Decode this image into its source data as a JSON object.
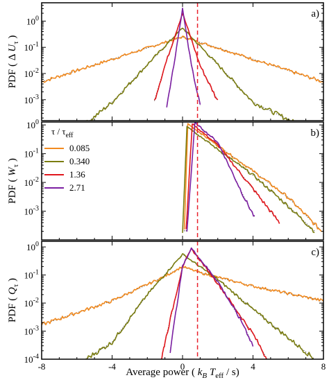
{
  "figure": {
    "xlabel": "Average power  ( k_B T_eff / s)",
    "x_ticks": [
      "-8",
      "-4",
      "0",
      "4",
      "8"
    ],
    "x_tick_values": [
      -8,
      -4,
      0,
      4,
      8
    ],
    "xlim": [
      -8,
      8
    ],
    "dashed_line_x": 0.85,
    "dashed_line_color": "#e8212c",
    "legend_title": "τ / τ_eff",
    "colors": {
      "0.085": "#f28a1f",
      "0.340": "#7a7d10",
      "1.36": "#e0161c",
      "2.71": "#7b1fa2",
      "theory_dotted": "#555555"
    }
  },
  "chart_data": [
    {
      "type": "line",
      "panel": "a)",
      "ylabel": "PDF ( Δ U_τ )",
      "ylim_log10": [
        -3.8,
        0.7
      ],
      "y_ticks": [
        "10^0",
        "10^-1",
        "10^-2",
        "10^-3"
      ],
      "y_tick_exponents": [
        0,
        -1,
        -2,
        -3
      ],
      "series": [
        {
          "name": "0.085",
          "x": [
            -8,
            -4,
            -2,
            0,
            2,
            4,
            8
          ],
          "y": [
            0.0048,
            0.035,
            0.095,
            0.25,
            0.095,
            0.035,
            0.0048
          ]
        },
        {
          "name": "0.340",
          "x": [
            -5.5,
            -4,
            -2,
            0,
            2,
            4,
            6.5
          ],
          "y": [
            0.00012,
            0.0008,
            0.022,
            0.55,
            0.022,
            0.0008,
            0.00012
          ]
        },
        {
          "name": "1.36",
          "x": [
            -1.6,
            -1,
            0,
            1,
            2.0
          ],
          "y": [
            0.0009,
            0.02,
            2.0,
            0.02,
            0.0009
          ]
        },
        {
          "name": "2.71",
          "x": [
            -0.9,
            -0.5,
            0,
            0.5,
            1.0
          ],
          "y": [
            0.0006,
            0.02,
            3.0,
            0.02,
            0.0006
          ]
        }
      ]
    },
    {
      "type": "line",
      "panel": "b)",
      "ylabel": "PDF ( W_τ )",
      "ylim_log10": [
        -4,
        0.1
      ],
      "y_ticks": [
        "10^0",
        "10^-1",
        "10^-2",
        "10^-3"
      ],
      "y_tick_exponents": [
        0,
        -1,
        -2,
        -3
      ],
      "series": [
        {
          "name": "0.085",
          "x": [
            0.1,
            0.3,
            2,
            4,
            6,
            7.9
          ],
          "y": [
            0.0002,
            1.1,
            0.19,
            0.025,
            0.003,
            0.0002
          ]
        },
        {
          "name": "0.340",
          "x": [
            0.0,
            0.25,
            2,
            4,
            6,
            7.5
          ],
          "y": [
            0.0002,
            0.9,
            0.14,
            0.018,
            0.0015,
            0.0002
          ]
        },
        {
          "name": "1.36",
          "x": [
            0.2,
            0.55,
            2,
            4,
            5.5
          ],
          "y": [
            0.0002,
            1.1,
            0.2,
            0.006,
            0.0004
          ]
        },
        {
          "name": "2.71",
          "x": [
            0.25,
            0.7,
            2,
            3.5,
            4.1
          ],
          "y": [
            0.0002,
            1.2,
            0.25,
            0.003,
            0.0006
          ]
        }
      ]
    },
    {
      "type": "line",
      "panel": "c)",
      "ylabel": "PDF ( Q_τ )",
      "ylim_log10": [
        -4,
        0.2
      ],
      "y_ticks": [
        "10^0",
        "10^-1",
        "10^-2",
        "10^-3",
        "10^-4"
      ],
      "y_tick_exponents": [
        0,
        -1,
        -2,
        -3,
        -4
      ],
      "series": [
        {
          "name": "0.085",
          "x": [
            -8,
            -4,
            -1,
            0,
            1,
            4,
            8
          ],
          "y": [
            0.0017,
            0.012,
            0.09,
            0.2,
            0.12,
            0.04,
            0.012
          ]
        },
        {
          "name": "0.340",
          "x": [
            -5.5,
            -4,
            -2,
            0,
            2,
            4,
            7.5
          ],
          "y": [
            0.0001,
            0.0004,
            0.02,
            0.55,
            0.07,
            0.006,
            0.0001
          ]
        },
        {
          "name": "1.36",
          "x": [
            -1.2,
            -1,
            0,
            0.5,
            2,
            4,
            4.8
          ],
          "y": [
            0.0001,
            0.0004,
            0.2,
            0.85,
            0.05,
            0.0008,
            0.0001
          ]
        },
        {
          "name": "2.71",
          "x": [
            -0.7,
            0,
            0.5,
            2,
            3.5,
            4.0
          ],
          "y": [
            0.0002,
            0.2,
            0.9,
            0.06,
            0.0015,
            0.0003
          ]
        }
      ]
    }
  ]
}
